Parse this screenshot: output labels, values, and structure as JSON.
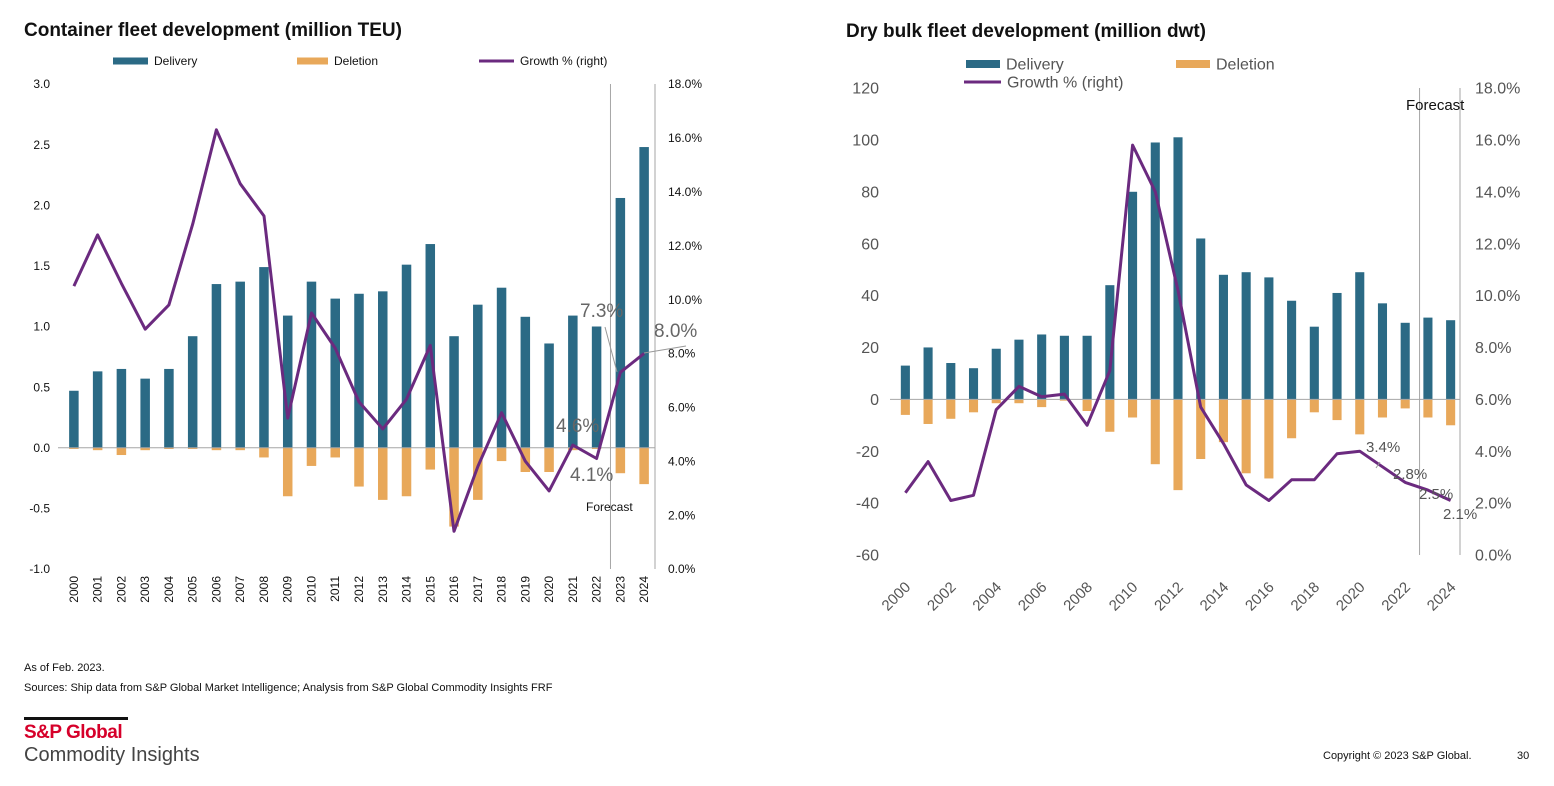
{
  "colors": {
    "delivery": "#2b6a85",
    "deletion": "#e8a85a",
    "growth": "#6b2a7f",
    "axis": "#a6a6a6",
    "logo_red": "#d6002a"
  },
  "chart_data": [
    {
      "type": "bar",
      "title": "Container fleet development (million TEU)",
      "legend": [
        "Delivery",
        "Deletion",
        "Growth % (right)"
      ],
      "legend_position": "top",
      "categories": [
        "2000",
        "2001",
        "2002",
        "2003",
        "2004",
        "2005",
        "2006",
        "2007",
        "2008",
        "2009",
        "2010",
        "2011",
        "2012",
        "2013",
        "2014",
        "2015",
        "2016",
        "2017",
        "2018",
        "2019",
        "2020",
        "2021",
        "2022",
        "2023",
        "2024"
      ],
      "series": [
        {
          "name": "Delivery",
          "type": "bar",
          "axis": "left",
          "values": [
            0.47,
            0.63,
            0.65,
            0.57,
            0.65,
            0.92,
            1.35,
            1.37,
            1.49,
            1.09,
            1.37,
            1.23,
            1.27,
            1.29,
            1.51,
            1.68,
            0.92,
            1.18,
            1.32,
            1.08,
            0.86,
            1.09,
            1.0,
            2.06,
            2.48
          ]
        },
        {
          "name": "Deletion",
          "type": "bar",
          "axis": "left",
          "values": [
            -0.01,
            -0.02,
            -0.06,
            -0.02,
            -0.01,
            -0.01,
            -0.02,
            -0.02,
            -0.08,
            -0.4,
            -0.15,
            -0.08,
            -0.32,
            -0.43,
            -0.4,
            -0.18,
            -0.65,
            -0.43,
            -0.11,
            -0.2,
            -0.2,
            -0.02,
            -0.01,
            -0.21,
            -0.3
          ]
        },
        {
          "name": "Growth % (right)",
          "type": "line",
          "axis": "right",
          "values": [
            10.5,
            12.4,
            10.6,
            8.9,
            9.8,
            12.8,
            16.3,
            14.3,
            13.1,
            5.6,
            9.5,
            8.2,
            6.2,
            5.2,
            6.3,
            8.3,
            1.4,
            3.8,
            5.8,
            4.0,
            2.9,
            4.6,
            4.1,
            7.3,
            8.0
          ]
        }
      ],
      "ylim": [
        -1.0,
        3.0
      ],
      "yticks": [
        "3.0",
        "2.5",
        "2.0",
        "1.5",
        "1.0",
        "0.5",
        "0.0",
        "-0.5",
        "-1.0"
      ],
      "y2lim": [
        0,
        18
      ],
      "y2ticks": [
        "18.0%",
        "16.0%",
        "14.0%",
        "12.0%",
        "10.0%",
        "8.0%",
        "6.0%",
        "4.0%",
        "2.0%",
        "0.0%"
      ],
      "xlabel_rotation": "vertical",
      "annotations": [
        {
          "text": "7.3%",
          "category": "2023"
        },
        {
          "text": "8.0%",
          "category": "2024"
        },
        {
          "text": "4.6%",
          "category": "2021"
        },
        {
          "text": "4.1%",
          "category": "2022"
        },
        {
          "text": "Forecast",
          "category": "2023"
        }
      ],
      "forecast_start": "2023"
    },
    {
      "type": "bar",
      "title": "Dry bulk fleet development (million dwt)",
      "legend": [
        "Delivery",
        "Deletion",
        "Growth % (right)"
      ],
      "legend_position": "top",
      "categories": [
        "2000",
        "2001",
        "2002",
        "2003",
        "2004",
        "2005",
        "2006",
        "2007",
        "2008",
        "2009",
        "2010",
        "2011",
        "2012",
        "2013",
        "2014",
        "2015",
        "2016",
        "2017",
        "2018",
        "2019",
        "2020",
        "2021",
        "2022",
        "2023",
        "2024"
      ],
      "xticks_shown": [
        "2000",
        "2002",
        "2004",
        "2006",
        "2008",
        "2010",
        "2012",
        "2014",
        "2016",
        "2018",
        "2020",
        "2022",
        "2024"
      ],
      "series": [
        {
          "name": "Delivery",
          "type": "bar",
          "axis": "left",
          "values": [
            13,
            20,
            14,
            12,
            19.5,
            23,
            25,
            24.5,
            24.5,
            44,
            80,
            99,
            101,
            62,
            48,
            49,
            47,
            38,
            28,
            41,
            49,
            37,
            29.5,
            31.5,
            30.5
          ]
        },
        {
          "name": "Deletion",
          "type": "bar",
          "axis": "left",
          "values": [
            -6,
            -9.5,
            -7.5,
            -5,
            -1.5,
            -1.5,
            -3,
            -0.5,
            -4.5,
            -12.5,
            -7,
            -25,
            -35,
            -23,
            -16.5,
            -28.5,
            -30.5,
            -15,
            -5,
            -8,
            -13.5,
            -7,
            -3.5,
            -7,
            -10
          ]
        },
        {
          "name": "Growth % (right)",
          "type": "line",
          "axis": "right",
          "values": [
            2.4,
            3.6,
            2.1,
            2.3,
            5.6,
            6.5,
            6.1,
            6.2,
            5.0,
            7.1,
            15.8,
            14.0,
            10.2,
            5.7,
            4.3,
            2.7,
            2.1,
            2.9,
            2.9,
            3.9,
            4.0,
            3.4,
            2.8,
            2.5,
            2.1
          ]
        }
      ],
      "ylim": [
        -60,
        120
      ],
      "yticks": [
        "120",
        "100",
        "80",
        "60",
        "40",
        "20",
        "0",
        "-20",
        "-40",
        "-60"
      ],
      "y2lim": [
        0,
        18
      ],
      "y2ticks": [
        "18.0%",
        "16.0%",
        "14.0%",
        "12.0%",
        "10.0%",
        "8.0%",
        "6.0%",
        "4.0%",
        "2.0%",
        "0.0%"
      ],
      "xlabel_rotation": "45deg",
      "annotations": [
        {
          "text": "3.4%",
          "category": "2021"
        },
        {
          "text": "2.8%",
          "category": "2022"
        },
        {
          "text": "2.5%",
          "category": "2023"
        },
        {
          "text": "2.1%",
          "category": "2024"
        },
        {
          "text": "Forecast",
          "category": "2023"
        }
      ],
      "forecast_start": "2023"
    }
  ],
  "notes": {
    "as_of": "As of Feb. 2023.",
    "sources": "Sources: Ship data from S&P Global Market Intelligence; Analysis from S&P Global Commodity Insights FRF"
  },
  "logo": {
    "line1": "S&P Global",
    "line2": "Commodity Insights"
  },
  "footer": {
    "copyright": "Copyright © 2023 S&P Global.",
    "page_number": "30"
  }
}
